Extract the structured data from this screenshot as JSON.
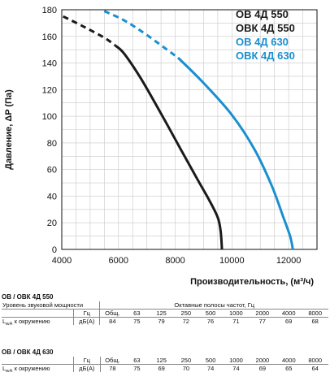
{
  "chart_data": {
    "type": "line",
    "xlabel": "Производительность, (м³/ч)",
    "ylabel": "Давление, ΔP (Па)",
    "xlim": [
      4000,
      13000
    ],
    "ylim": [
      0,
      180
    ],
    "xticks": [
      "4000",
      "6000",
      "8000",
      "10000",
      "12000"
    ],
    "yticks": [
      "0",
      "20",
      "40",
      "60",
      "80",
      "100",
      "120",
      "140",
      "160",
      "180"
    ],
    "grid": true,
    "legend_position": "top-right",
    "series": [
      {
        "name": "ОВ 4Д 550 / ОВК 4Д 550",
        "legend": [
          "ОВ 4Д 550",
          "ОВК 4Д 550"
        ],
        "color": "#1a1a1a",
        "dashed_points": [
          [
            4050,
            175
          ],
          [
            4800,
            167
          ],
          [
            5500,
            159
          ],
          [
            5900,
            153
          ]
        ],
        "solid_points": [
          [
            5900,
            153
          ],
          [
            6200,
            147
          ],
          [
            6800,
            128
          ],
          [
            7500,
            102
          ],
          [
            8200,
            75
          ],
          [
            8800,
            52
          ],
          [
            9200,
            37
          ],
          [
            9500,
            24
          ],
          [
            9600,
            14
          ],
          [
            9650,
            0
          ]
        ]
      },
      {
        "name": "ОВ 4Д 630 / ОВК 4Д 630",
        "legend": [
          "ОВ 4Д 630",
          "ОВК 4Д 630"
        ],
        "color": "#1a8fd0",
        "dashed_points": [
          [
            5500,
            179
          ],
          [
            6200,
            172
          ],
          [
            7000,
            161
          ],
          [
            8100,
            144
          ]
        ],
        "solid_points": [
          [
            8100,
            144
          ],
          [
            9000,
            125
          ],
          [
            10000,
            101
          ],
          [
            10800,
            75
          ],
          [
            11400,
            48
          ],
          [
            11800,
            25
          ],
          [
            12050,
            10
          ],
          [
            12150,
            0
          ]
        ]
      }
    ]
  },
  "tables": [
    {
      "title": "ОВ / ОВК 4Д 550",
      "row1_label": "Уровень звуковой мощности",
      "row1_group": "Октавные полосы частот, Гц",
      "header": [
        "Гц",
        "Общ.",
        "63",
        "125",
        "250",
        "500",
        "1000",
        "2000",
        "4000",
        "8000"
      ],
      "row_label_main": "L",
      "row_label_sub": "wA",
      "row_label_rest": " к окружению",
      "unit": "дБ(А)",
      "values": [
        "84",
        "75",
        "79",
        "72",
        "76",
        "71",
        "77",
        "69",
        "68"
      ]
    },
    {
      "title": "ОВ / ОВК 4Д 630",
      "header": [
        "Гц",
        "Общ.",
        "63",
        "125",
        "250",
        "500",
        "1000",
        "2000",
        "4000",
        "8000"
      ],
      "row_label_main": "L",
      "row_label_sub": "wA",
      "row_label_rest": " к окружению",
      "unit": "дБ(А)",
      "values": [
        "78",
        "75",
        "69",
        "70",
        "74",
        "74",
        "69",
        "65",
        "64"
      ]
    }
  ]
}
